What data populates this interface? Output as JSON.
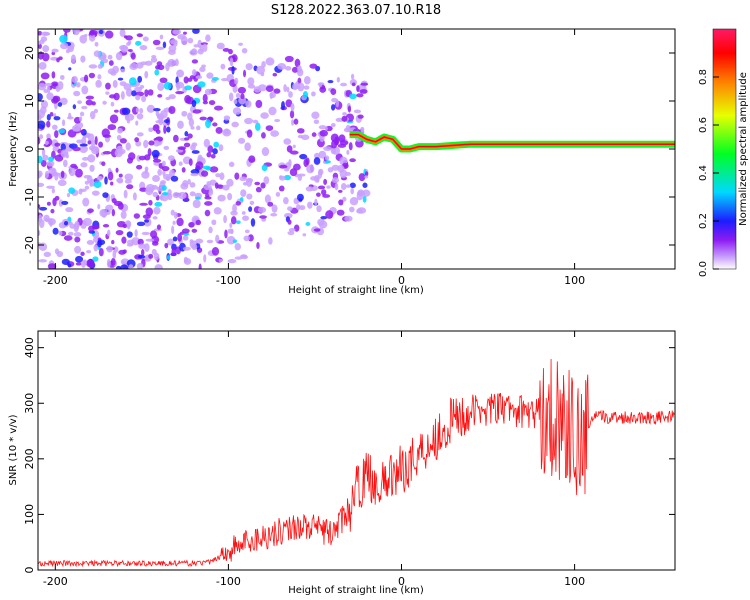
{
  "chart_data": [
    {
      "type": "heatmap",
      "title": "S128.2022.363.07.10.R18",
      "xlabel": "Height of straight line (km)",
      "ylabel": "Frequency (Hz)",
      "xlim": [
        -210,
        158
      ],
      "ylim": [
        -25,
        25
      ],
      "xticks": [
        -200,
        -100,
        0,
        100
      ],
      "yticks": [
        -20,
        -10,
        0,
        10,
        20
      ],
      "colorbar": {
        "label": "Normalized spectral amplitude",
        "range": [
          0,
          1
        ],
        "ticks": [
          "0.0",
          "0.2",
          "0.4",
          "0.6",
          "0.8"
        ],
        "colors": [
          "#ffffff",
          "#c9a0ff",
          "#8e1cf2",
          "#1c1cff",
          "#00d8ff",
          "#00ff22",
          "#e8ff00",
          "#ff8000",
          "#ff0000",
          "#ff1a66"
        ]
      },
      "carrier_trace": {
        "description": "frequency of strongest spectral line vs height",
        "x": [
          -30,
          -25,
          -20,
          -15,
          -10,
          -5,
          0,
          5,
          10,
          20,
          40,
          60,
          80,
          100,
          105,
          158
        ],
        "y": [
          3,
          3,
          2,
          1.5,
          2.5,
          2,
          0,
          0,
          0.5,
          0.5,
          1,
          1,
          1,
          1,
          1,
          1
        ]
      },
      "noise_region": {
        "x_from": -210,
        "x_to": -30
      }
    },
    {
      "type": "line",
      "title": "",
      "xlabel": "Height of straight line (km)",
      "ylabel": "SNR (10 * v/v)",
      "xlim": [
        -210,
        158
      ],
      "ylim": [
        0,
        430
      ],
      "xticks": [
        -200,
        -100,
        0,
        100
      ],
      "yticks": [
        0,
        100,
        200,
        300,
        400
      ],
      "line_color": "#ff1010",
      "series": [
        {
          "name": "SNR",
          "x": [
            -210,
            -180,
            -150,
            -120,
            -110,
            -100,
            -90,
            -80,
            -70,
            -60,
            -50,
            -40,
            -30,
            -25,
            -20,
            -15,
            -10,
            -5,
            0,
            10,
            20,
            30,
            40,
            50,
            60,
            70,
            80,
            90,
            95,
            100,
            105,
            110,
            130,
            158
          ],
          "y": [
            12,
            12,
            12,
            12,
            14,
            35,
            50,
            60,
            70,
            80,
            75,
            65,
            110,
            150,
            170,
            160,
            150,
            175,
            180,
            210,
            240,
            270,
            285,
            290,
            290,
            285,
            280,
            275,
            260,
            240,
            220,
            275,
            275,
            275
          ]
        }
      ]
    }
  ]
}
